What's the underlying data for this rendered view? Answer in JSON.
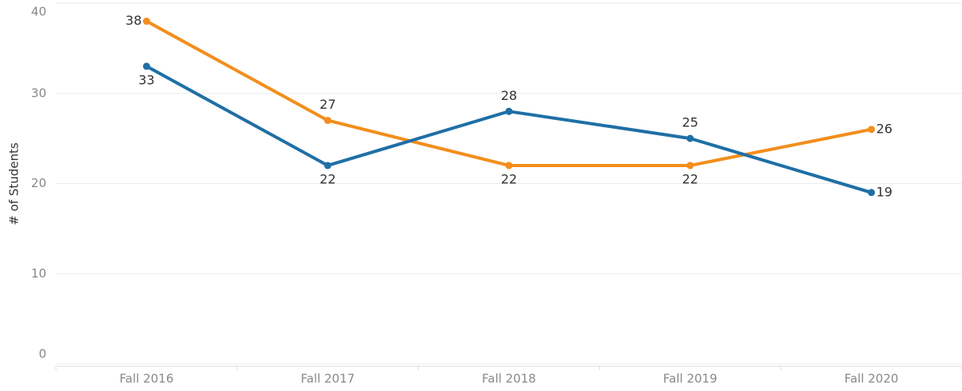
{
  "chart_data": {
    "type": "line",
    "y_label": "# of Students",
    "categories": [
      "Fall 2016",
      "Fall 2017",
      "Fall 2018",
      "Fall 2019",
      "Fall 2020"
    ],
    "series": [
      {
        "color": "#f28e1c",
        "values": [
          38,
          27,
          22,
          22,
          26
        ]
      },
      {
        "color": "#1f6fa6",
        "values": [
          33,
          22,
          28,
          25,
          19
        ]
      }
    ],
    "ylim": [
      0,
      40
    ],
    "yticks": [
      0,
      10,
      20,
      30,
      40
    ],
    "grid": true
  }
}
